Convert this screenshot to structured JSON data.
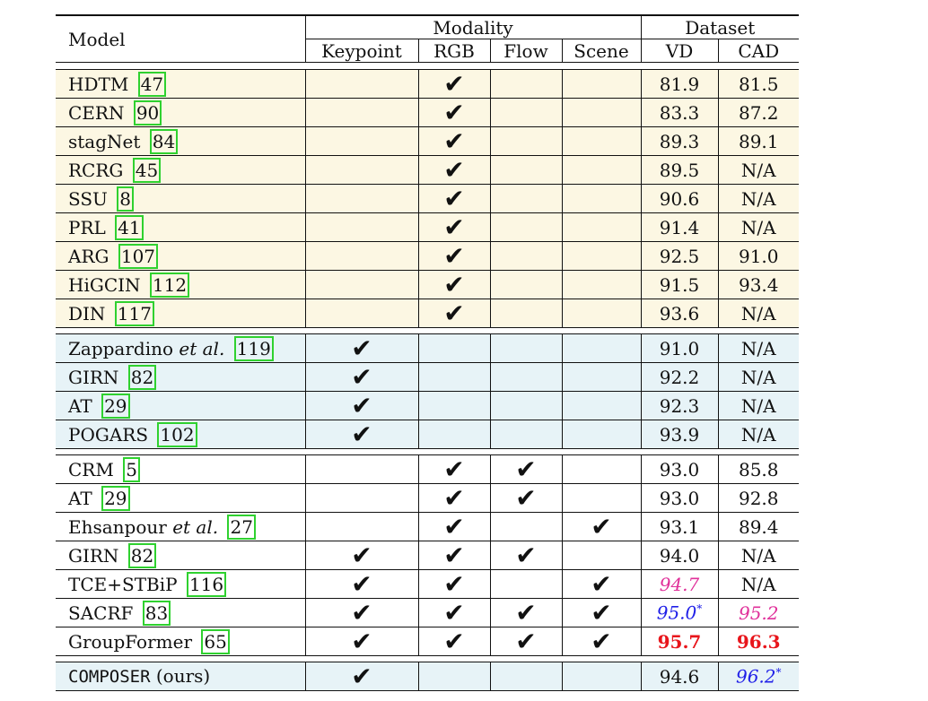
{
  "header": {
    "model": "Model",
    "modality": "Modality",
    "dataset": "Dataset",
    "keypoint": "Keypoint",
    "rgb": "RGB",
    "flow": "Flow",
    "scene": "Scene",
    "vd": "VD",
    "cad": "CAD"
  },
  "check_glyph": "✔",
  "groups": [
    {
      "color": "#fcf7e3",
      "rows": [
        {
          "name": "HDTM",
          "ref": "47",
          "kp": false,
          "rgb": true,
          "flow": false,
          "scene": false,
          "vd": "81.9",
          "cad": "81.5"
        },
        {
          "name": "CERN",
          "ref": "90",
          "kp": false,
          "rgb": true,
          "flow": false,
          "scene": false,
          "vd": "83.3",
          "cad": "87.2"
        },
        {
          "name": "stagNet",
          "ref": "84",
          "kp": false,
          "rgb": true,
          "flow": false,
          "scene": false,
          "vd": "89.3",
          "cad": "89.1"
        },
        {
          "name": "RCRG",
          "ref": "45",
          "kp": false,
          "rgb": true,
          "flow": false,
          "scene": false,
          "vd": "89.5",
          "cad": "N/A"
        },
        {
          "name": "SSU",
          "ref": "8",
          "kp": false,
          "rgb": true,
          "flow": false,
          "scene": false,
          "vd": "90.6",
          "cad": "N/A"
        },
        {
          "name": "PRL",
          "ref": "41",
          "kp": false,
          "rgb": true,
          "flow": false,
          "scene": false,
          "vd": "91.4",
          "cad": "N/A"
        },
        {
          "name": "ARG",
          "ref": "107",
          "kp": false,
          "rgb": true,
          "flow": false,
          "scene": false,
          "vd": "92.5",
          "cad": "91.0"
        },
        {
          "name": "HiGCIN",
          "ref": "112",
          "kp": false,
          "rgb": true,
          "flow": false,
          "scene": false,
          "vd": "91.5",
          "cad": "93.4"
        },
        {
          "name": "DIN",
          "ref": "117",
          "kp": false,
          "rgb": true,
          "flow": false,
          "scene": false,
          "vd": "93.6",
          "cad": "N/A"
        }
      ]
    },
    {
      "color": "#e7f3f7",
      "rows": [
        {
          "name": "Zappardino",
          "name_em": "et al.",
          "ref": "119",
          "kp": true,
          "rgb": false,
          "flow": false,
          "scene": false,
          "vd": "91.0",
          "cad": "N/A"
        },
        {
          "name": "GIRN",
          "ref": "82",
          "kp": true,
          "rgb": false,
          "flow": false,
          "scene": false,
          "vd": "92.2",
          "cad": "N/A"
        },
        {
          "name": "AT",
          "ref": "29",
          "kp": true,
          "rgb": false,
          "flow": false,
          "scene": false,
          "vd": "92.3",
          "cad": "N/A"
        },
        {
          "name": "POGARS",
          "ref": "102",
          "kp": true,
          "rgb": false,
          "flow": false,
          "scene": false,
          "vd": "93.9",
          "cad": "N/A"
        }
      ]
    },
    {
      "color": "#ffffff",
      "rows": [
        {
          "name": "CRM",
          "ref": "5",
          "kp": false,
          "rgb": true,
          "flow": true,
          "scene": false,
          "vd": "93.0",
          "cad": "85.8"
        },
        {
          "name": "AT",
          "ref": "29",
          "kp": false,
          "rgb": true,
          "flow": true,
          "scene": false,
          "vd": "93.0",
          "cad": "92.8"
        },
        {
          "name": "Ehsanpour",
          "name_em": "et al.",
          "ref": "27",
          "kp": false,
          "rgb": true,
          "flow": false,
          "scene": true,
          "vd": "93.1",
          "cad": "89.4"
        },
        {
          "name": "GIRN",
          "ref": "82",
          "kp": true,
          "rgb": true,
          "flow": true,
          "scene": false,
          "vd": "94.0",
          "cad": "N/A"
        },
        {
          "name": "TCE+STBiP",
          "ref": "116",
          "kp": true,
          "rgb": true,
          "flow": false,
          "scene": true,
          "vd": "94.7",
          "vd_style": "magenta",
          "cad": "N/A"
        },
        {
          "name": "SACRF",
          "ref": "83",
          "kp": true,
          "rgb": true,
          "flow": true,
          "scene": true,
          "vd": "95.0",
          "vd_sup": "*",
          "vd_style": "blueit",
          "cad": "95.2",
          "cad_style": "magenta"
        },
        {
          "name": "GroupFormer",
          "ref": "65",
          "kp": true,
          "rgb": true,
          "flow": true,
          "scene": true,
          "vd": "95.7",
          "vd_style": "redb",
          "cad": "96.3",
          "cad_style": "redb"
        }
      ]
    },
    {
      "color": "#e7f3f7",
      "rows": [
        {
          "name": "COMPOSER",
          "name_mono": true,
          "suffix": "(ours)",
          "kp": true,
          "rgb": false,
          "flow": false,
          "scene": false,
          "vd": "94.6",
          "cad": "96.2",
          "cad_sup": "*",
          "cad_style": "blueit"
        }
      ]
    }
  ]
}
